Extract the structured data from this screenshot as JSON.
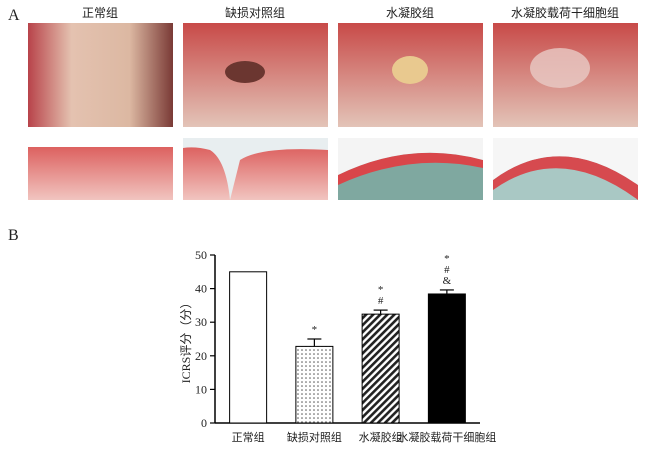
{
  "panel_a": {
    "label": "A",
    "columns": [
      "正常组",
      "缺损对照组",
      "水凝胶组",
      "水凝胶载荷干细胞组"
    ]
  },
  "panel_b": {
    "label": "B"
  },
  "chart_data": {
    "type": "bar",
    "categories": [
      "正常组",
      "缺损对照组",
      "水凝胶组",
      "水凝胶载荷干细胞组"
    ],
    "values": [
      45,
      22.8,
      32.4,
      38.4
    ],
    "errors": [
      null,
      2.2,
      1.2,
      1.2
    ],
    "annotations": [
      null,
      [
        "*"
      ],
      [
        "*",
        "#"
      ],
      [
        "*",
        "#",
        "&"
      ]
    ],
    "patterns": [
      "none",
      "dots",
      "hatch",
      "solid"
    ],
    "color": "#000000",
    "ylabel": "ICRS评分（分）",
    "ylim": [
      0,
      50
    ],
    "yticks": [
      0,
      10,
      20,
      30,
      40,
      50
    ]
  }
}
